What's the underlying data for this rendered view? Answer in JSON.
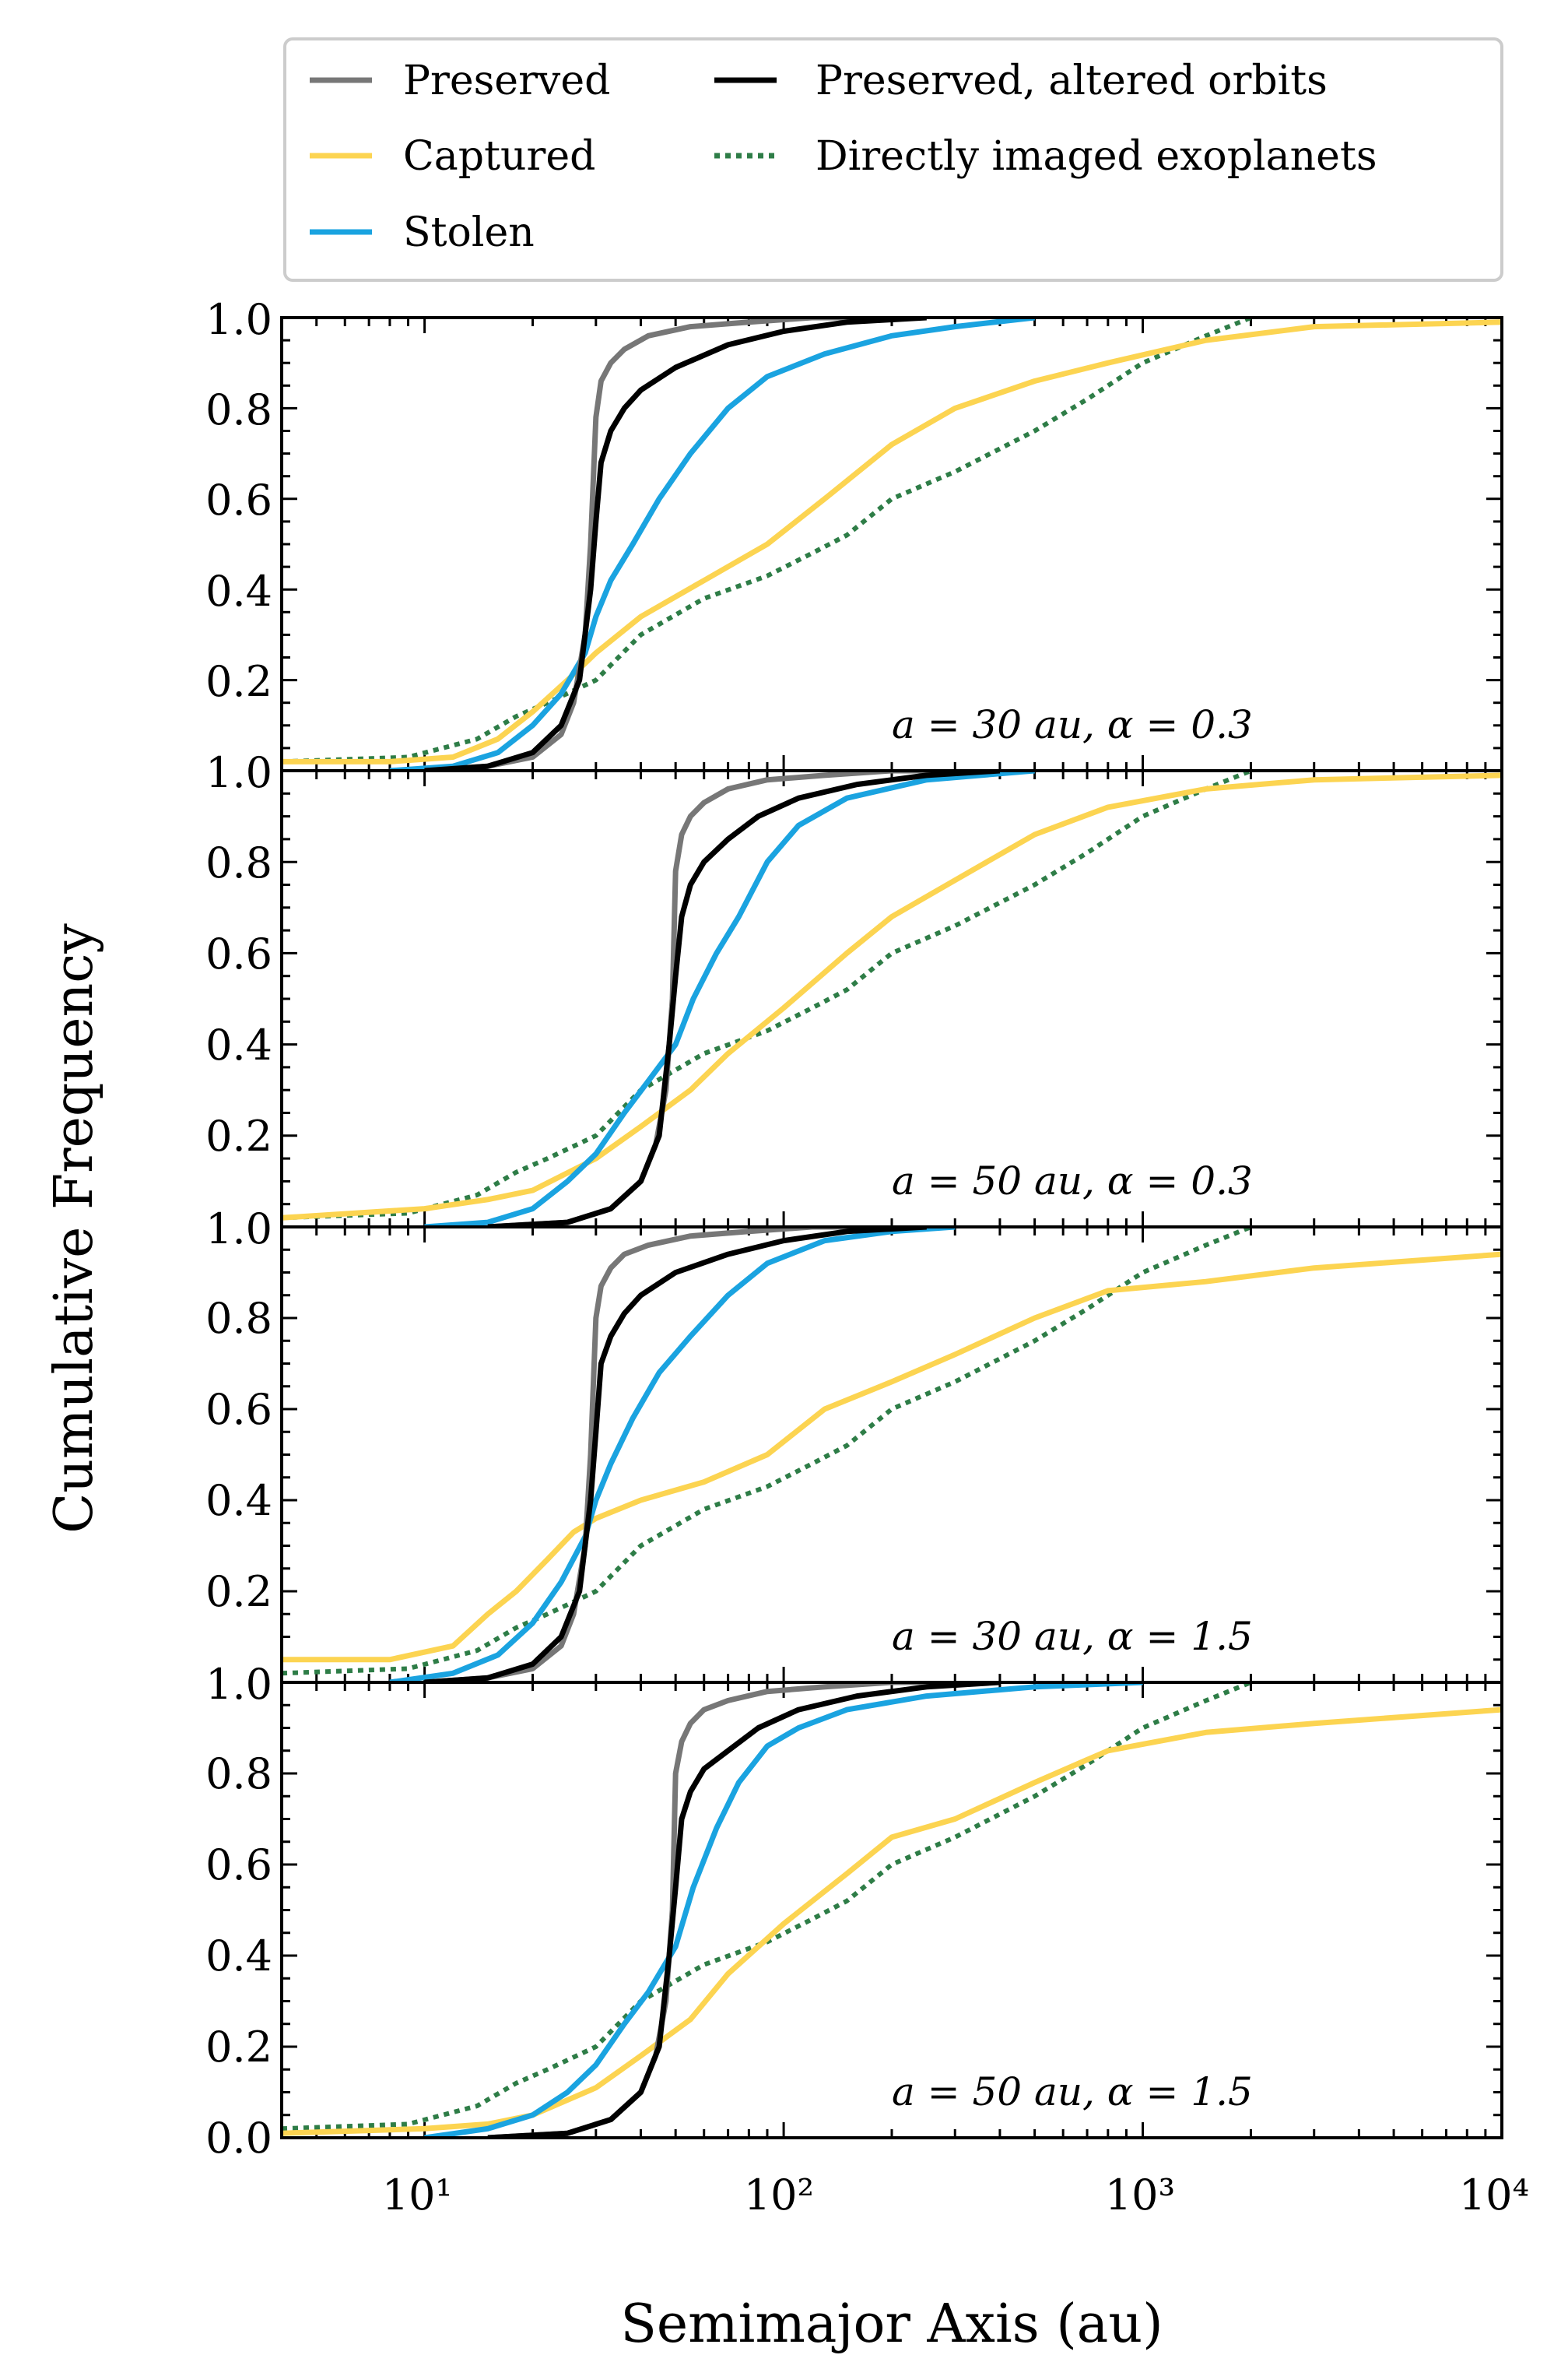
{
  "chart_data": {
    "type": "line",
    "xlabel": "Semimajor Axis (au)",
    "ylabel": "Cumulative Frequency",
    "xscale": "log",
    "xlim": [
      4,
      10000
    ],
    "ylim": [
      0.0,
      1.0
    ],
    "x_ticks": [
      "10¹",
      "10²",
      "10³",
      "10⁴"
    ],
    "y_ticks": [
      "0.2",
      "0.4",
      "0.6",
      "0.8"
    ],
    "y_tick_top": "1.0",
    "y_tick_bottom": "0.0",
    "legend_position": "top",
    "legend": [
      {
        "key": "preserved",
        "label": "Preserved",
        "color": "#777777",
        "style": "solid"
      },
      {
        "key": "captured",
        "label": "Captured",
        "color": "#fcd451",
        "style": "solid"
      },
      {
        "key": "stolen",
        "label": "Stolen",
        "color": "#1aa3e0",
        "style": "solid"
      },
      {
        "key": "altered",
        "label": "Preserved, altered orbits",
        "color": "#000000",
        "style": "solid"
      },
      {
        "key": "imaged",
        "label": "Directly imaged exoplanets",
        "color": "#2e7d47",
        "style": "dotted"
      }
    ],
    "panels": [
      {
        "label": "a = 30 au, α = 0.3",
        "series": {
          "preserved": {
            "x": [
              10,
              15,
              20,
              24,
              26,
              28,
              29,
              30,
              31,
              33,
              36,
              42,
              55,
              80,
              120,
              200
            ],
            "y": [
              0.0,
              0.01,
              0.03,
              0.08,
              0.15,
              0.3,
              0.5,
              0.78,
              0.86,
              0.9,
              0.93,
              0.96,
              0.98,
              0.99,
              1.0,
              1.0
            ]
          },
          "altered": {
            "x": [
              10,
              15,
              20,
              24,
              27,
              29,
              30,
              31,
              33,
              36,
              40,
              50,
              70,
              100,
              150,
              250
            ],
            "y": [
              0.0,
              0.01,
              0.04,
              0.1,
              0.2,
              0.4,
              0.55,
              0.68,
              0.75,
              0.8,
              0.84,
              0.89,
              0.94,
              0.97,
              0.99,
              1.0
            ]
          },
          "stolen": {
            "x": [
              8,
              12,
              16,
              20,
              24,
              28,
              30,
              33,
              38,
              45,
              55,
              70,
              90,
              130,
              200,
              300,
              500
            ],
            "y": [
              0.0,
              0.01,
              0.04,
              0.1,
              0.17,
              0.26,
              0.34,
              0.42,
              0.5,
              0.6,
              0.7,
              0.8,
              0.87,
              0.92,
              0.96,
              0.98,
              1.0
            ]
          },
          "captured": {
            "x": [
              4,
              8,
              12,
              16,
              20,
              25,
              30,
              40,
              60,
              90,
              130,
              200,
              300,
              500,
              800,
              1500,
              3000,
              10000
            ],
            "y": [
              0.02,
              0.02,
              0.03,
              0.07,
              0.13,
              0.2,
              0.26,
              0.34,
              0.42,
              0.5,
              0.6,
              0.72,
              0.8,
              0.86,
              0.9,
              0.95,
              0.98,
              0.99
            ]
          },
          "imaged": {
            "x": [
              4,
              9,
              14,
              18,
              22,
              30,
              40,
              60,
              90,
              120,
              150,
              200,
              300,
              500,
              700,
              1000,
              1500,
              2000
            ],
            "y": [
              0.02,
              0.03,
              0.07,
              0.12,
              0.15,
              0.2,
              0.3,
              0.38,
              0.43,
              0.48,
              0.52,
              0.6,
              0.66,
              0.75,
              0.82,
              0.9,
              0.96,
              1.0
            ]
          }
        }
      },
      {
        "label": "a = 50 au, α = 0.3",
        "series": {
          "preserved": {
            "x": [
              15,
              25,
              33,
              40,
              44,
              47,
              49,
              50,
              52,
              55,
              60,
              70,
              90,
              130,
              200,
              300
            ],
            "y": [
              0.0,
              0.01,
              0.04,
              0.1,
              0.18,
              0.3,
              0.5,
              0.78,
              0.86,
              0.9,
              0.93,
              0.96,
              0.98,
              0.99,
              1.0,
              1.0
            ]
          },
          "altered": {
            "x": [
              15,
              25,
              33,
              40,
              45,
              48,
              50,
              52,
              55,
              60,
              70,
              85,
              110,
              160,
              250,
              400
            ],
            "y": [
              0.0,
              0.01,
              0.04,
              0.1,
              0.2,
              0.4,
              0.55,
              0.68,
              0.75,
              0.8,
              0.85,
              0.9,
              0.94,
              0.97,
              0.99,
              1.0
            ]
          },
          "stolen": {
            "x": [
              10,
              15,
              20,
              25,
              30,
              36,
              42,
              50,
              56,
              65,
              75,
              90,
              110,
              150,
              250,
              500
            ],
            "y": [
              0.0,
              0.01,
              0.04,
              0.1,
              0.16,
              0.25,
              0.32,
              0.4,
              0.5,
              0.6,
              0.68,
              0.8,
              0.88,
              0.94,
              0.98,
              1.0
            ]
          },
          "captured": {
            "x": [
              4,
              10,
              15,
              20,
              30,
              40,
              55,
              70,
              100,
              150,
              200,
              300,
              500,
              800,
              1500,
              3000,
              10000
            ],
            "y": [
              0.02,
              0.04,
              0.06,
              0.08,
              0.15,
              0.22,
              0.3,
              0.38,
              0.48,
              0.6,
              0.68,
              0.76,
              0.86,
              0.92,
              0.96,
              0.98,
              0.99
            ]
          },
          "imaged": {
            "x": [
              4,
              9,
              14,
              18,
              22,
              30,
              40,
              60,
              90,
              120,
              150,
              200,
              300,
              500,
              700,
              1000,
              1500,
              2000
            ],
            "y": [
              0.02,
              0.03,
              0.07,
              0.12,
              0.15,
              0.2,
              0.3,
              0.38,
              0.43,
              0.48,
              0.52,
              0.6,
              0.66,
              0.75,
              0.82,
              0.9,
              0.96,
              1.0
            ]
          }
        }
      },
      {
        "label": "a = 30 au, α = 1.5",
        "series": {
          "preserved": {
            "x": [
              10,
              15,
              20,
              24,
              26,
              28,
              29,
              30,
              31,
              33,
              36,
              42,
              55,
              80,
              120,
              200
            ],
            "y": [
              0.0,
              0.01,
              0.03,
              0.08,
              0.15,
              0.3,
              0.5,
              0.8,
              0.87,
              0.91,
              0.94,
              0.96,
              0.98,
              0.99,
              1.0,
              1.0
            ]
          },
          "altered": {
            "x": [
              10,
              15,
              20,
              24,
              27,
              29,
              30,
              31,
              33,
              36,
              40,
              50,
              70,
              100,
              150,
              250
            ],
            "y": [
              0.0,
              0.01,
              0.04,
              0.1,
              0.2,
              0.4,
              0.55,
              0.7,
              0.76,
              0.81,
              0.85,
              0.9,
              0.94,
              0.97,
              0.99,
              1.0
            ]
          },
          "stolen": {
            "x": [
              8,
              12,
              16,
              20,
              24,
              28,
              30,
              33,
              38,
              45,
              55,
              70,
              90,
              130,
              200,
              300
            ],
            "y": [
              0.0,
              0.02,
              0.06,
              0.13,
              0.22,
              0.32,
              0.4,
              0.48,
              0.58,
              0.68,
              0.76,
              0.85,
              0.92,
              0.97,
              0.99,
              1.0
            ]
          },
          "captured": {
            "x": [
              4,
              8,
              12,
              15,
              18,
              22,
              26,
              30,
              40,
              60,
              90,
              130,
              200,
              300,
              500,
              800,
              1500,
              3000,
              10000
            ],
            "y": [
              0.05,
              0.05,
              0.08,
              0.15,
              0.2,
              0.27,
              0.33,
              0.36,
              0.4,
              0.44,
              0.5,
              0.6,
              0.66,
              0.72,
              0.8,
              0.86,
              0.88,
              0.91,
              0.94
            ]
          },
          "imaged": {
            "x": [
              4,
              9,
              14,
              18,
              22,
              30,
              40,
              60,
              90,
              120,
              150,
              200,
              300,
              500,
              700,
              1000,
              1500,
              2000
            ],
            "y": [
              0.02,
              0.03,
              0.07,
              0.12,
              0.15,
              0.2,
              0.3,
              0.38,
              0.43,
              0.48,
              0.52,
              0.6,
              0.66,
              0.75,
              0.82,
              0.9,
              0.96,
              1.0
            ]
          }
        }
      },
      {
        "label": "a = 50 au, α = 1.5",
        "series": {
          "preserved": {
            "x": [
              15,
              25,
              33,
              40,
              44,
              47,
              49,
              50,
              52,
              55,
              60,
              70,
              90,
              130,
              200,
              300
            ],
            "y": [
              0.0,
              0.01,
              0.04,
              0.1,
              0.18,
              0.3,
              0.5,
              0.8,
              0.87,
              0.91,
              0.94,
              0.96,
              0.98,
              0.99,
              1.0,
              1.0
            ]
          },
          "altered": {
            "x": [
              15,
              25,
              33,
              40,
              45,
              48,
              50,
              52,
              55,
              60,
              70,
              85,
              110,
              160,
              250,
              400
            ],
            "y": [
              0.0,
              0.01,
              0.04,
              0.1,
              0.2,
              0.4,
              0.55,
              0.7,
              0.76,
              0.81,
              0.85,
              0.9,
              0.94,
              0.97,
              0.99,
              1.0
            ]
          },
          "stolen": {
            "x": [
              10,
              15,
              20,
              25,
              30,
              36,
              42,
              50,
              56,
              65,
              75,
              90,
              110,
              150,
              250,
              500,
              1000
            ],
            "y": [
              0.0,
              0.02,
              0.05,
              0.1,
              0.16,
              0.25,
              0.32,
              0.42,
              0.55,
              0.68,
              0.78,
              0.86,
              0.9,
              0.94,
              0.97,
              0.99,
              1.0
            ]
          },
          "captured": {
            "x": [
              4,
              10,
              15,
              20,
              30,
              40,
              55,
              70,
              100,
              150,
              200,
              300,
              500,
              800,
              1500,
              3000,
              10000
            ],
            "y": [
              0.01,
              0.02,
              0.03,
              0.05,
              0.11,
              0.18,
              0.26,
              0.36,
              0.47,
              0.58,
              0.66,
              0.7,
              0.78,
              0.85,
              0.89,
              0.91,
              0.94
            ]
          },
          "imaged": {
            "x": [
              4,
              9,
              14,
              18,
              22,
              30,
              40,
              60,
              90,
              120,
              150,
              200,
              300,
              500,
              700,
              1000,
              1500,
              2000
            ],
            "y": [
              0.02,
              0.03,
              0.07,
              0.12,
              0.15,
              0.2,
              0.3,
              0.38,
              0.43,
              0.48,
              0.52,
              0.6,
              0.66,
              0.75,
              0.82,
              0.9,
              0.96,
              1.0
            ]
          }
        }
      }
    ]
  }
}
